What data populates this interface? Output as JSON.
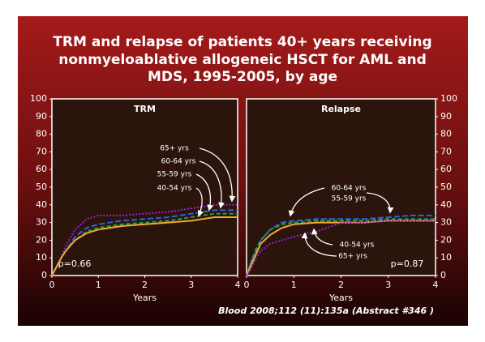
{
  "title_lines": [
    "TRM and relapse of patients 40+ years receiving",
    "nonmyeloablative allogeneic HSCT for AML and",
    "MDS, 1995-2005, by age"
  ],
  "citation": "Blood 2008;112 (11):135a (Abstract #346 )",
  "chart_data": [
    {
      "type": "line",
      "title": "TRM",
      "xlabel": "Years",
      "annotation": "p=0.66",
      "x": [
        0,
        0.1,
        0.2,
        0.3,
        0.5,
        0.75,
        1,
        1.5,
        2,
        2.5,
        3,
        3.5,
        4
      ],
      "xlim": [
        0,
        4
      ],
      "xticks": [
        0,
        1,
        2,
        3,
        4
      ],
      "ylim": [
        0,
        100
      ],
      "yticks": [
        0,
        10,
        20,
        30,
        40,
        50,
        60,
        70,
        80,
        90,
        100
      ],
      "series": [
        {
          "name": "65+ yrs",
          "color": "#a020d0",
          "values": [
            0,
            5,
            10,
            17,
            26,
            32,
            34,
            34,
            35,
            36,
            38,
            40,
            40
          ]
        },
        {
          "name": "60-64 yrs",
          "color": "#3060e0",
          "values": [
            0,
            5,
            10,
            14,
            22,
            27,
            29,
            31,
            32,
            33,
            35,
            37,
            37
          ]
        },
        {
          "name": "55-59 yrs",
          "color": "#20a040",
          "values": [
            0,
            5,
            10,
            14,
            20,
            25,
            27,
            29,
            30,
            31,
            33,
            35,
            35
          ]
        },
        {
          "name": "40-54 yrs",
          "color": "#f0a830",
          "values": [
            0,
            5,
            10,
            14,
            20,
            24,
            26,
            28,
            29,
            30,
            31,
            33,
            33
          ]
        }
      ]
    },
    {
      "type": "line",
      "title": "Relapse",
      "xlabel": "Years",
      "annotation": "p=0.87",
      "x": [
        0,
        0.1,
        0.2,
        0.3,
        0.5,
        0.75,
        1,
        1.5,
        2,
        2.5,
        3,
        3.5,
        4
      ],
      "xlim": [
        0,
        4
      ],
      "xticks": [
        0,
        1,
        2,
        3,
        4
      ],
      "ylim": [
        0,
        100
      ],
      "yticks": [
        0,
        10,
        20,
        30,
        40,
        50,
        60,
        70,
        80,
        90,
        100
      ],
      "series": [
        {
          "name": "60-64 yrs",
          "color": "#3060e0",
          "values": [
            0,
            8,
            14,
            20,
            26,
            30,
            31,
            32,
            32,
            32,
            33,
            34,
            34
          ]
        },
        {
          "name": "55-59 yrs",
          "color": "#20a040",
          "values": [
            0,
            8,
            15,
            20,
            26,
            29,
            30,
            31,
            31,
            31,
            32,
            32,
            32
          ]
        },
        {
          "name": "40-54 yrs",
          "color": "#f0a830",
          "values": [
            0,
            6,
            12,
            18,
            23,
            27,
            29,
            30,
            30,
            30,
            31,
            31,
            31
          ]
        },
        {
          "name": "65+ yrs",
          "color": "#a020d0",
          "values": [
            0,
            4,
            10,
            14,
            18,
            20,
            22,
            25,
            30,
            30,
            31,
            31,
            31
          ]
        }
      ]
    }
  ]
}
